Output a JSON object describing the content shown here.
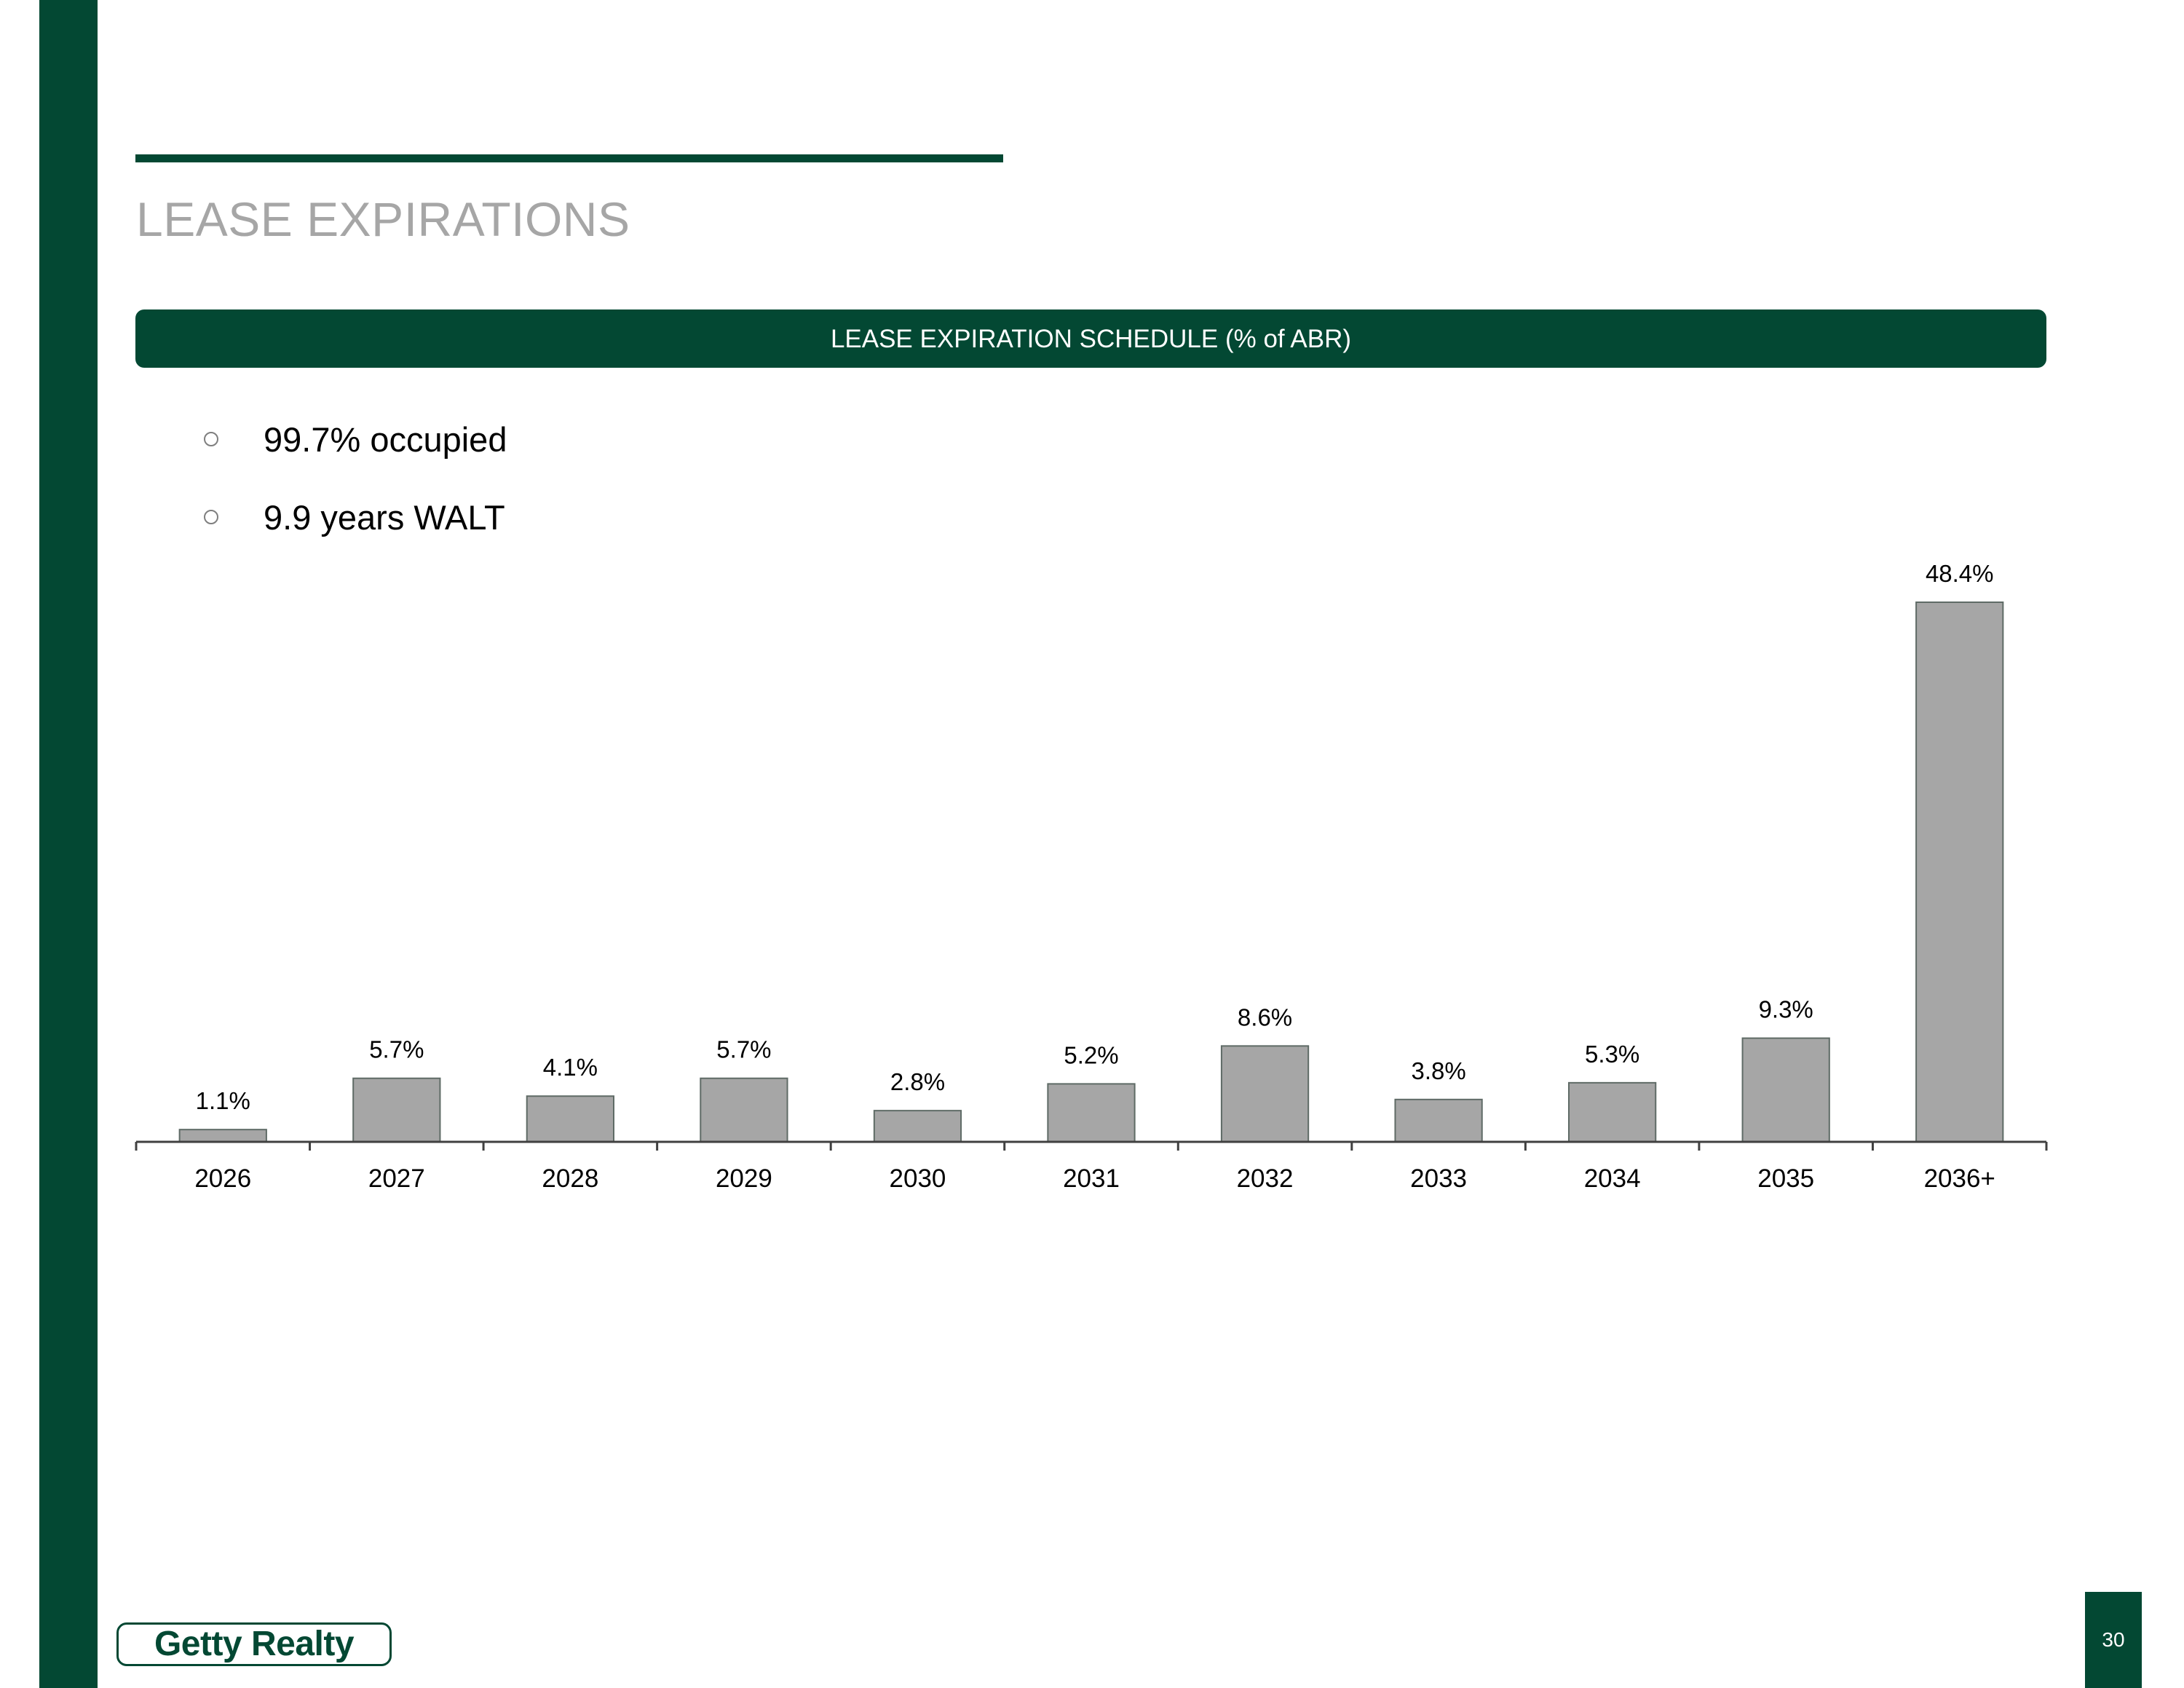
{
  "slide": {
    "title": "LEASE EXPIRATIONS",
    "section_header": "LEASE EXPIRATION SCHEDULE (% of ABR)",
    "bullets": [
      {
        "text": "99.7% occupied",
        "icon": "circle-bullet-icon"
      },
      {
        "text": "9.9 years WALT",
        "icon": "circle-bullet-icon"
      }
    ],
    "logo_text": "Getty Realty",
    "page_number": "30"
  },
  "colors": {
    "brand_green": "#034833",
    "bar_fill": "#a6a6a6",
    "bar_stroke": "#5f6b66",
    "title_gray": "#a6a6a6"
  },
  "chart_data": {
    "type": "bar",
    "title": "LEASE EXPIRATION SCHEDULE (% of ABR)",
    "categories": [
      "2026",
      "2027",
      "2028",
      "2029",
      "2030",
      "2031",
      "2032",
      "2033",
      "2034",
      "2035",
      "2036+"
    ],
    "values": [
      1.1,
      5.7,
      4.1,
      5.7,
      2.8,
      5.2,
      8.6,
      3.8,
      5.3,
      9.3,
      48.4
    ],
    "data_labels": [
      "1.1%",
      "5.7%",
      "4.1%",
      "5.7%",
      "2.8%",
      "5.2%",
      "8.6%",
      "3.8%",
      "5.3%",
      "9.3%",
      "48.4%"
    ],
    "unit": "%",
    "xlabel": "",
    "ylabel": "",
    "ylim": [
      0,
      48.4
    ],
    "grid": false,
    "legend": "none"
  }
}
